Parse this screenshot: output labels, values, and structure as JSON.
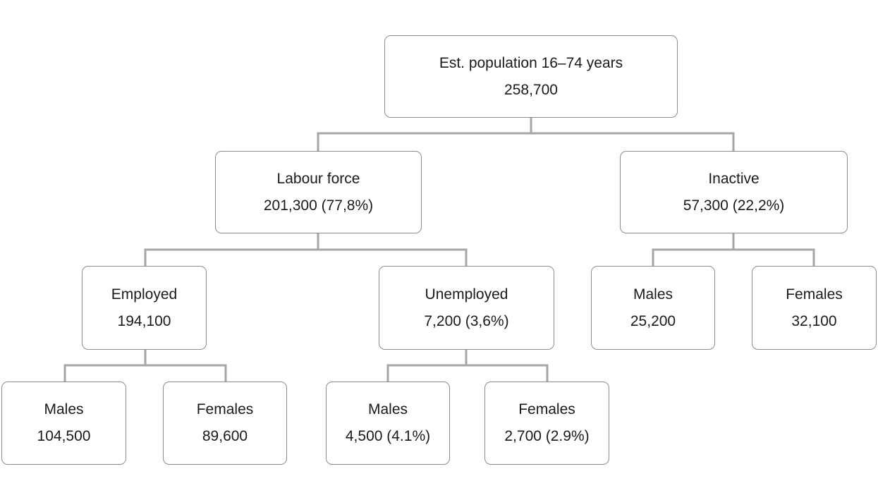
{
  "tree": {
    "root": {
      "label": "Est. population 16–74 years",
      "value": "258,700"
    },
    "labour_force": {
      "label": "Labour force",
      "value": "201,300 (77,8%)"
    },
    "inactive": {
      "label": "Inactive",
      "value": "57,300 (22,2%)"
    },
    "employed": {
      "label": "Employed",
      "value": "194,100"
    },
    "unemployed": {
      "label": "Unemployed",
      "value": "7,200 (3,6%)"
    },
    "inactive_males": {
      "label": "Males",
      "value": "25,200"
    },
    "inactive_females": {
      "label": "Females",
      "value": "32,100"
    },
    "employed_males": {
      "label": "Males",
      "value": "104,500"
    },
    "employed_females": {
      "label": "Females",
      "value": "89,600"
    },
    "unemployed_males": {
      "label": "Males",
      "value": "4,500 (4.1%)"
    },
    "unemployed_females": {
      "label": "Females",
      "value": "2,700 (2.9%)"
    }
  },
  "colors": {
    "connector": "#a6a6a6",
    "box_border": "#8c8c8c",
    "text": "#1a1a1a"
  }
}
